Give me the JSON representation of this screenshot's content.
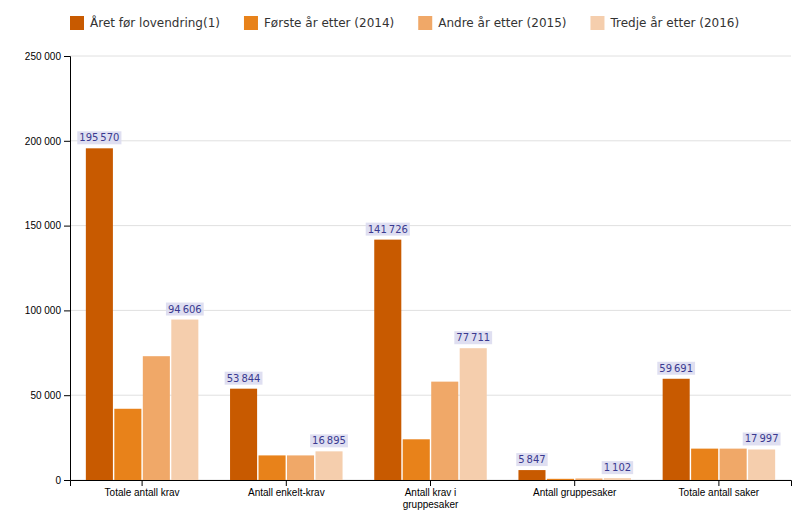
{
  "chart_data": {
    "type": "bar",
    "categories": [
      "Totale antall krav",
      "Antall enkelt-krav",
      "Antall krav i\ngruppesaker",
      "Antall gruppesaker",
      "Totale antall saker"
    ],
    "series": [
      {
        "name": "Året før lovendring(1)",
        "color": "#C85A00",
        "values": [
          195570,
          53844,
          141726,
          5847,
          59691
        ],
        "value_labels": [
          "195 570",
          "53 844",
          "141 726",
          "5 847",
          "59 691"
        ]
      },
      {
        "name": "Første år etter (2014)",
        "color": "#E8821A",
        "values": [
          42000,
          14500,
          24000,
          700,
          18500
        ]
      },
      {
        "name": "Andre år etter (2015)",
        "color": "#F0A868",
        "values": [
          73000,
          14500,
          58000,
          900,
          18500
        ]
      },
      {
        "name": "Tredje år etter (2016)",
        "color": "#F5CEAD",
        "values": [
          94606,
          16895,
          77711,
          1102,
          17997
        ],
        "value_labels": [
          "94 606",
          "16 895",
          "77 711",
          "1 102",
          "17 997"
        ]
      }
    ],
    "ylim": [
      0,
      250000
    ],
    "yticks": [
      0,
      {
        "value": 50000,
        "label": "50 000"
      },
      {
        "value": 100000,
        "label": "100 000"
      },
      {
        "value": 150000,
        "label": "150 000"
      },
      {
        "value": 200000,
        "label": "200 000"
      },
      {
        "value": 250000,
        "label": "250 000"
      }
    ],
    "grid": true,
    "legend": "top",
    "data_labels": true
  }
}
